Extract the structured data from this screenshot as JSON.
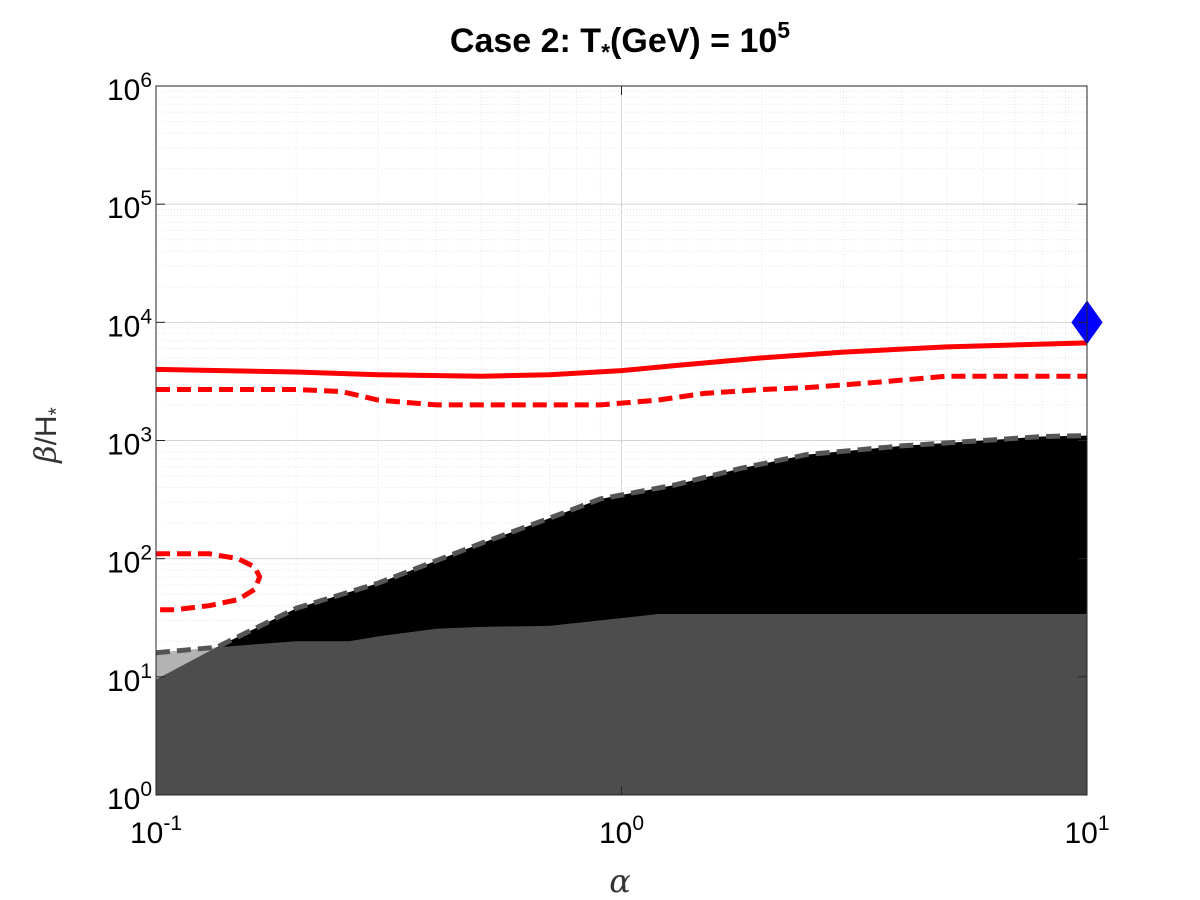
{
  "chart_data": {
    "type": "area",
    "title": {
      "prefix": "Case 2: T",
      "subscript": "*",
      "middle": "(GeV) = 10",
      "superscript": "5"
    },
    "xlabel": "α",
    "ylabel": {
      "beta": "β",
      "rest": "/H",
      "subscript": "*"
    },
    "x_scale": "log",
    "y_scale": "log",
    "xlim": [
      0.1,
      10
    ],
    "ylim": [
      1,
      1000000
    ],
    "grid": true,
    "minor_grid": true,
    "x_ticks": [
      {
        "value": 0.1,
        "base": "10",
        "exp": "-1"
      },
      {
        "value": 1,
        "base": "10",
        "exp": "0"
      },
      {
        "value": 10,
        "base": "10",
        "exp": "1"
      }
    ],
    "y_ticks": [
      {
        "value": 1,
        "base": "10",
        "exp": "0"
      },
      {
        "value": 10,
        "base": "10",
        "exp": "1"
      },
      {
        "value": 100,
        "base": "10",
        "exp": "2"
      },
      {
        "value": 1000,
        "base": "10",
        "exp": "3"
      },
      {
        "value": 10000,
        "base": "10",
        "exp": "4"
      },
      {
        "value": 100000,
        "base": "10",
        "exp": "5"
      },
      {
        "value": 1000000,
        "base": "10",
        "exp": "6"
      }
    ],
    "regions": [
      {
        "kind": "light-gray-region",
        "color": "#b3b3b3",
        "upper": {
          "x": [
            0.1,
            0.135
          ],
          "y": [
            16,
            17.8
          ]
        },
        "lower_floor": 1
      },
      {
        "kind": "black-region",
        "color": "#000000",
        "upper": {
          "x": [
            0.135,
            0.2,
            0.3,
            0.5,
            0.7,
            0.9,
            1.3,
            1.8,
            2.5,
            4,
            6,
            8,
            10
          ],
          "y": [
            17.8,
            38,
            62,
            135,
            220,
            320,
            420,
            580,
            760,
            900,
            1000,
            1080,
            1100
          ]
        },
        "lower_floor": 1
      },
      {
        "kind": "dark-gray-region",
        "color": "#4d4d4d",
        "upper": {
          "x": [
            0.1,
            0.135,
            0.2,
            0.26,
            0.3,
            0.4,
            0.5,
            0.7,
            1.2,
            2,
            5,
            10
          ],
          "y": [
            9.5,
            17.8,
            20,
            20,
            22,
            25.5,
            26.5,
            27,
            34,
            34,
            34,
            34
          ]
        },
        "lower_floor": 1
      }
    ],
    "series": [
      {
        "style": "solid",
        "color": "#ff0000",
        "x": [
          0.1,
          0.2,
          0.3,
          0.5,
          0.7,
          1,
          1.3,
          2,
          3,
          5,
          10
        ],
        "y": [
          4000,
          3800,
          3600,
          3500,
          3600,
          3900,
          4300,
          5000,
          5600,
          6200,
          6700
        ]
      },
      {
        "style": "dashed",
        "color": "#ff0000",
        "x": [
          0.1,
          0.2,
          0.25,
          0.3,
          0.4,
          0.6,
          0.9,
          1.2,
          1.5,
          2,
          2.5,
          3.5,
          5,
          7,
          10
        ],
        "y": [
          2700,
          2700,
          2600,
          2200,
          2000,
          2000,
          2000,
          2200,
          2500,
          2700,
          2800,
          3100,
          3500,
          3500,
          3500
        ]
      },
      {
        "style": "dashed",
        "color": "#ff0000",
        "x": [
          0.1,
          0.13,
          0.15,
          0.163,
          0.167,
          0.163,
          0.15,
          0.13,
          0.11,
          0.1
        ],
        "y": [
          110,
          110,
          100,
          85,
          70,
          55,
          45,
          40,
          37,
          37
        ]
      },
      {
        "style": "dashed",
        "color": "#555555",
        "x": [
          0.1,
          0.135,
          0.2,
          0.3,
          0.5,
          0.7,
          0.9,
          1.3,
          1.8,
          2.5,
          4,
          6,
          8,
          10
        ],
        "y": [
          16,
          17.8,
          38,
          62,
          135,
          220,
          320,
          420,
          580,
          760,
          900,
          1000,
          1080,
          1100
        ]
      }
    ],
    "markers": [
      {
        "shape": "diamond",
        "color": "#0000ff",
        "x": 10,
        "y": 10000
      }
    ]
  }
}
